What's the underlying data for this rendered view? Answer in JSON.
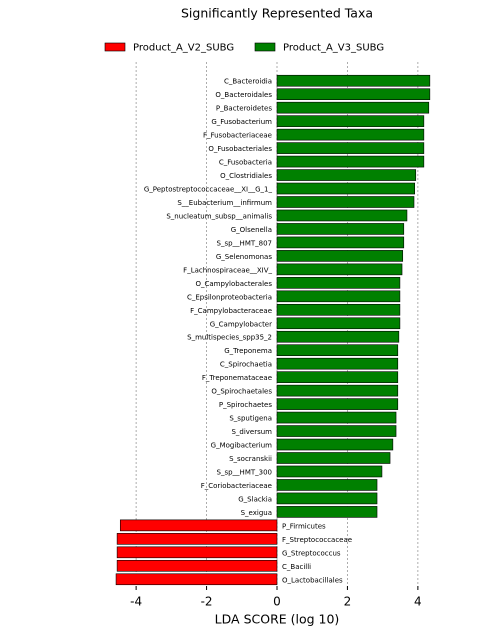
{
  "chart_data": {
    "type": "barh",
    "title": "Significantly Represented Taxa",
    "xlabel": "LDA SCORE (log 10)",
    "categories": [
      "C_Bacteroidia",
      "O_Bacteroidales",
      "P_Bacteroidetes",
      "G_Fusobacterium",
      "F_Fusobacteriaceae",
      "O_Fusobacteriales",
      "C_Fusobacteria",
      "O_Clostridiales",
      "G_Peptostreptococcaceae__XI__G_1_",
      "S__Eubacterium__infirmum",
      "S_nucleatum_subsp__animalis",
      "G_Olsenella",
      "S_sp__HMT_807",
      "G_Selenomonas",
      "F_Lachnospiraceae__XIV_",
      "O_Campylobacterales",
      "C_Epsilonproteobacteria",
      "F_Campylobacteraceae",
      "G_Campylobacter",
      "S_multispecies_spp35_2",
      "G_Treponema",
      "C_Spirochaetia",
      "F_Treponemataceae",
      "O_Spirochaetales",
      "P_Spirochaetes",
      "S_sputigena",
      "S_diversum",
      "G_Mogibacterium",
      "S_socranskii",
      "S_sp__HMT_300",
      "F_Coriobacteriaceae",
      "G_Slackia",
      "S_exigua",
      "P_Firmicutes",
      "F_Streptococcaceae",
      "G_Streptococcus",
      "C_Bacilli",
      "O_Lactobacillales"
    ],
    "series": [
      {
        "name": "Product_A_V2_SUBG",
        "color": "#ff0000",
        "values": [
          null,
          null,
          null,
          null,
          null,
          null,
          null,
          null,
          null,
          null,
          null,
          null,
          null,
          null,
          null,
          null,
          null,
          null,
          null,
          null,
          null,
          null,
          null,
          null,
          null,
          null,
          null,
          null,
          null,
          null,
          null,
          null,
          null,
          -4.45,
          -4.54,
          -4.54,
          -4.54,
          -4.57
        ]
      },
      {
        "name": "Product_A_V3_SUBG",
        "color": "#008000",
        "values": [
          4.34,
          4.34,
          4.31,
          4.17,
          4.17,
          4.17,
          4.17,
          3.94,
          3.91,
          3.89,
          3.69,
          3.6,
          3.6,
          3.57,
          3.55,
          3.49,
          3.49,
          3.49,
          3.49,
          3.46,
          3.43,
          3.43,
          3.43,
          3.43,
          3.43,
          3.38,
          3.38,
          3.29,
          3.21,
          2.98,
          2.84,
          2.84,
          2.84,
          null,
          null,
          null,
          null,
          null
        ]
      }
    ],
    "xlim": [
      -4.6,
      4.6
    ],
    "xticks": [
      -4,
      -2,
      0,
      2,
      4
    ],
    "grid": true
  }
}
